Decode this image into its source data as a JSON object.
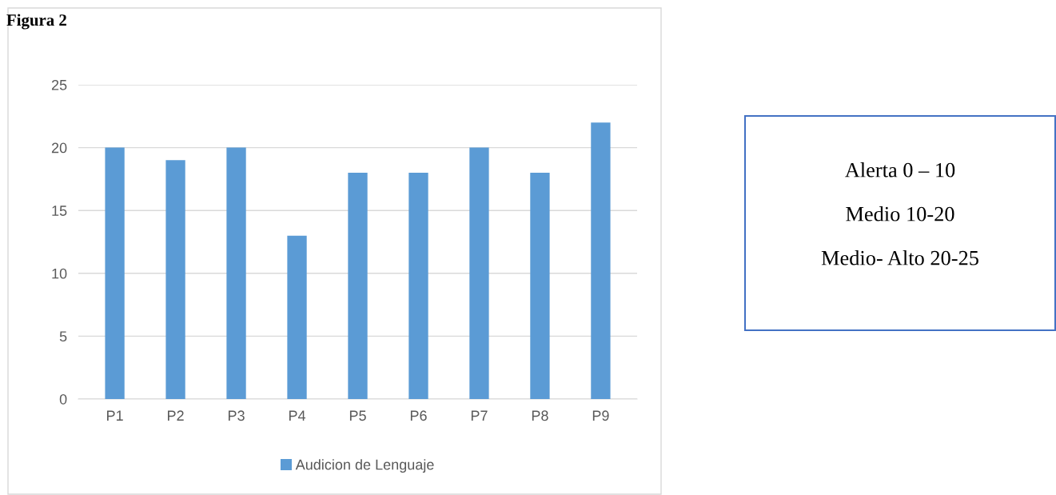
{
  "chart_data": {
    "type": "bar",
    "title": "Figura 2",
    "categories": [
      "P1",
      "P2",
      "P3",
      "P4",
      "P5",
      "P6",
      "P7",
      "P8",
      "P9"
    ],
    "series": [
      {
        "name": "Audicion de Lenguaje",
        "color": "#5b9bd5",
        "values": [
          20,
          19,
          20,
          13,
          18,
          18,
          20,
          18,
          22
        ]
      }
    ],
    "ylim": [
      0,
      25
    ],
    "yticks": [
      0,
      5,
      10,
      15,
      20,
      25
    ],
    "grid": "y",
    "legend": "bottom",
    "annotations": [
      "Alerta 0 – 10",
      "Medio 10-20",
      "Medio- Alto 20-25"
    ]
  }
}
